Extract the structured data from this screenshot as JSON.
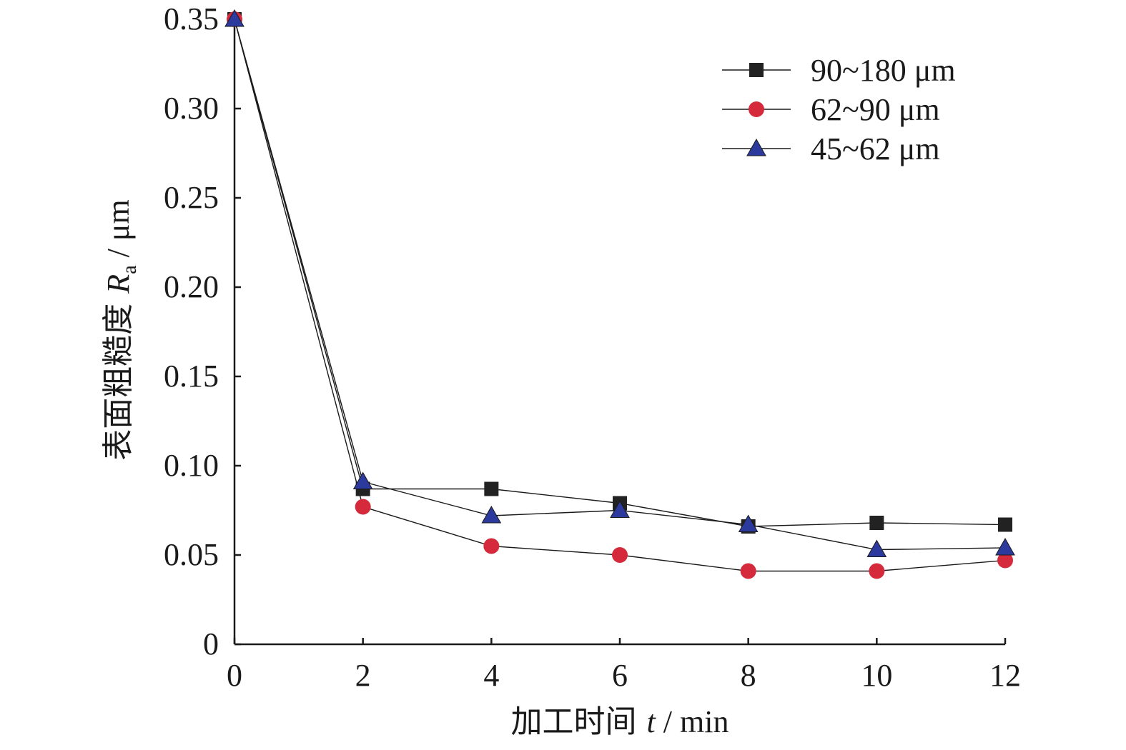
{
  "chart_data": {
    "type": "line",
    "title": "",
    "xlabel_prefix": "加工时间",
    "xlabel_var": "t",
    "xlabel_unit": " / min",
    "ylabel_prefix": "表面粗糙度",
    "ylabel_var": "R",
    "ylabel_sub": "a",
    "ylabel_unit": " / μm",
    "x": [
      0,
      2,
      4,
      6,
      8,
      10,
      12
    ],
    "xlim": [
      0,
      12
    ],
    "ylim": [
      0,
      0.35
    ],
    "x_ticks": [
      "0",
      "2",
      "4",
      "6",
      "8",
      "10",
      "12"
    ],
    "y_ticks": [
      "0",
      "0.05",
      "0.10",
      "0.15",
      "0.20",
      "0.25",
      "0.30",
      "0.35"
    ],
    "grid": false,
    "legend_position": "top-right",
    "series": [
      {
        "name": "90~180 μm",
        "marker": "square",
        "color": "#222222",
        "values": [
          0.35,
          0.087,
          0.087,
          0.079,
          0.066,
          0.068,
          0.067
        ]
      },
      {
        "name": "62~90 μm",
        "marker": "circle",
        "color": "#d42a3c",
        "values": [
          0.35,
          0.077,
          0.055,
          0.05,
          0.041,
          0.041,
          0.047
        ]
      },
      {
        "name": "45~62 μm",
        "marker": "triangle",
        "color": "#2b3a9c",
        "values": [
          0.35,
          0.091,
          0.072,
          0.075,
          0.067,
          0.053,
          0.054
        ]
      }
    ]
  }
}
